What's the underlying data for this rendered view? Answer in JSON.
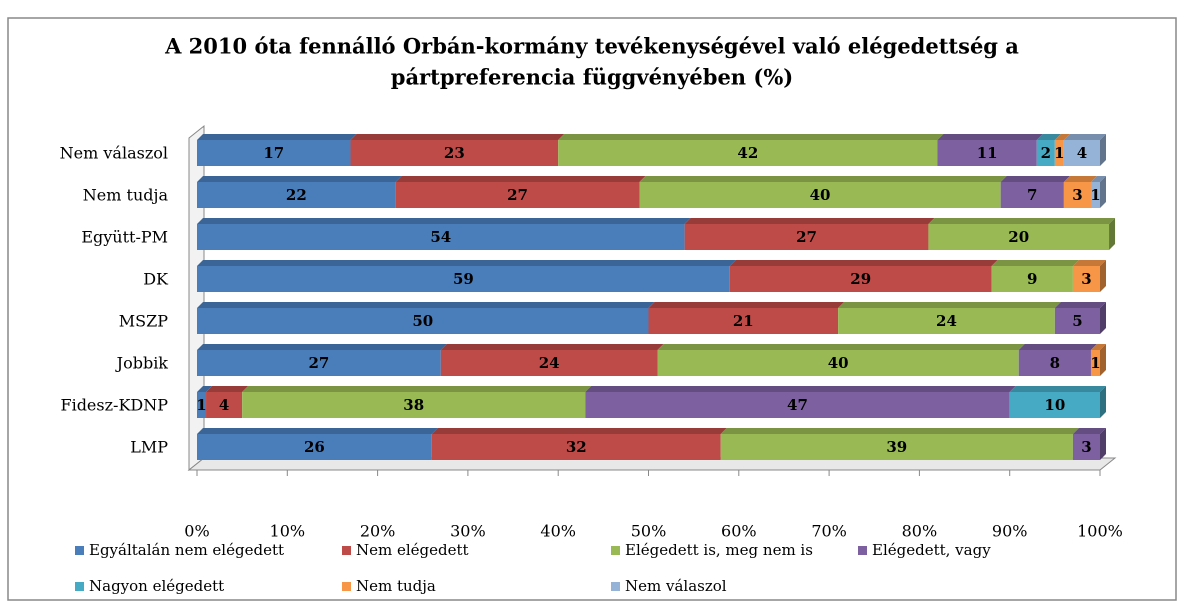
{
  "chart_data": {
    "type": "stacked-bar-horizontal",
    "title": [
      "A 2010 óta fennálló Orbán-kormány tevékenységével való elégedettség a",
      "pártpreferencia függvényében (%)"
    ],
    "categories": [
      "Nem válaszol",
      "Nem tudja",
      "Együtt-PM",
      "DK",
      "MSZP",
      "Jobbik",
      "Fidesz-KDNP",
      "LMP"
    ],
    "series": [
      {
        "name": "Egyáltalán nem elégedett",
        "color": "#4a7ebb",
        "values": [
          17,
          22,
          54,
          59,
          50,
          27,
          1,
          26
        ]
      },
      {
        "name": "Nem elégedett",
        "color": "#be4b48",
        "values": [
          23,
          27,
          27,
          29,
          21,
          24,
          4,
          32
        ]
      },
      {
        "name": "Elégedett is, meg nem is",
        "color": "#98b954",
        "values": [
          42,
          40,
          20,
          9,
          24,
          40,
          38,
          39
        ]
      },
      {
        "name": "Elégedett, vagy",
        "color": "#7d60a0",
        "values": [
          11,
          7,
          0,
          0,
          5,
          8,
          47,
          3
        ]
      },
      {
        "name": "Nagyon elégedett",
        "color": "#46aac5",
        "values": [
          2,
          0,
          0,
          0,
          0,
          0,
          10,
          0
        ]
      },
      {
        "name": "Nem tudja",
        "color": "#f79646",
        "values": [
          1,
          3,
          0,
          3,
          0,
          1,
          0,
          0
        ]
      },
      {
        "name": "Nem válaszol",
        "color": "#95b3d7",
        "values": [
          4,
          1,
          0,
          0,
          0,
          0,
          0,
          0
        ]
      }
    ],
    "xlim": [
      0,
      100
    ],
    "xticks": [
      {
        "value": 0,
        "label": "0%"
      },
      {
        "value": 10,
        "label": "10%"
      },
      {
        "value": 20,
        "label": "20%"
      },
      {
        "value": 30,
        "label": "30%"
      },
      {
        "value": 40,
        "label": "40%"
      },
      {
        "value": 50,
        "label": "50%"
      },
      {
        "value": 60,
        "label": "60%"
      },
      {
        "value": 70,
        "label": "70%"
      },
      {
        "value": 80,
        "label": "80%"
      },
      {
        "value": 90,
        "label": "90%"
      },
      {
        "value": 100,
        "label": "100%"
      }
    ]
  }
}
